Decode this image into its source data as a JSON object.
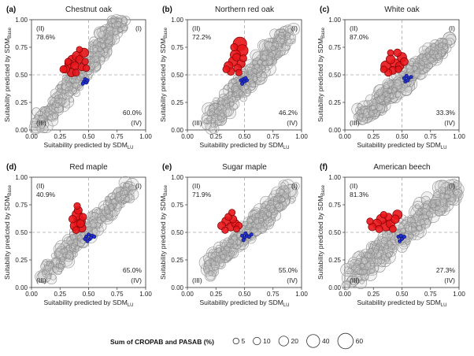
{
  "legend": {
    "title": "Sum of CROPAB and PASAB (%)",
    "entries": [
      {
        "label": "5",
        "value": 5
      },
      {
        "label": "10",
        "value": 10
      },
      {
        "label": "20",
        "value": 20
      },
      {
        "label": "40",
        "value": 40
      },
      {
        "label": "60",
        "value": 60
      }
    ]
  },
  "axes": {
    "x_label_main": "Suitability predicted by SDM",
    "x_label_sub": "LU",
    "y_label_main": "Suitability predicted by SDM",
    "y_label_sub": "Base",
    "ticks": [
      "0.00",
      "0.25",
      "0.50",
      "0.75",
      "1.00"
    ]
  },
  "colors": {
    "gray_fill": "#cccccc",
    "gray_stroke": "#8a8a8a",
    "red_fill": "#e8151b",
    "red_stroke": "#7a0000",
    "blue_fill": "#2233cc",
    "blue_stroke": "#0a0a66",
    "guide_line": "#a8a8a8"
  },
  "chart_data": [
    {
      "type": "scatter",
      "panel": "(a)",
      "title": "Chestnut oak",
      "quadrants": {
        "II": "78.6%",
        "IV": "60.0%"
      },
      "labels": {
        "I": "(I)",
        "II": "(II)",
        "III": "(III)",
        "IV": "(IV)"
      },
      "xlim": [
        0,
        1
      ],
      "ylim": [
        0,
        1
      ],
      "thresholds": {
        "x": 0.5,
        "y": 0.5
      },
      "cloud": {
        "x0": 0.05,
        "y0": 0.02,
        "x1": 0.78,
        "y1": 0.98,
        "spread": 0.065,
        "n": 300,
        "seed": 11
      },
      "red": [
        [
          0.3,
          0.55,
          10
        ],
        [
          0.33,
          0.6,
          14
        ],
        [
          0.36,
          0.63,
          22
        ],
        [
          0.38,
          0.58,
          12
        ],
        [
          0.4,
          0.67,
          18
        ],
        [
          0.42,
          0.64,
          9
        ],
        [
          0.44,
          0.57,
          8
        ],
        [
          0.46,
          0.7,
          15
        ],
        [
          0.35,
          0.52,
          12
        ],
        [
          0.39,
          0.52,
          7
        ],
        [
          0.32,
          0.62,
          6
        ],
        [
          0.47,
          0.62,
          6
        ],
        [
          0.28,
          0.55,
          8
        ],
        [
          0.42,
          0.73,
          5
        ],
        [
          0.48,
          0.56,
          6
        ]
      ],
      "blue": [
        [
          0.46,
          0.44
        ],
        [
          0.47,
          0.46
        ],
        [
          0.48,
          0.43
        ],
        [
          0.49,
          0.45
        ],
        [
          0.45,
          0.42
        ]
      ]
    },
    {
      "type": "scatter",
      "panel": "(b)",
      "title": "Northern red oak",
      "quadrants": {
        "II": "72.2%",
        "IV": "46.2%"
      },
      "labels": {
        "I": "(I)",
        "II": "(II)",
        "III": "(III)",
        "IV": "(IV)"
      },
      "xlim": [
        0,
        1
      ],
      "ylim": [
        0,
        1
      ],
      "thresholds": {
        "x": 0.5,
        "y": 0.5
      },
      "cloud": {
        "x0": 0.18,
        "y0": 0.05,
        "x1": 0.88,
        "y1": 0.88,
        "spread": 0.065,
        "n": 300,
        "seed": 23
      },
      "red": [
        [
          0.46,
          0.78,
          40
        ],
        [
          0.48,
          0.72,
          28
        ],
        [
          0.42,
          0.68,
          20
        ],
        [
          0.4,
          0.62,
          16
        ],
        [
          0.36,
          0.58,
          14
        ],
        [
          0.44,
          0.56,
          10
        ],
        [
          0.38,
          0.53,
          9
        ],
        [
          0.47,
          0.6,
          11
        ],
        [
          0.34,
          0.55,
          7
        ],
        [
          0.41,
          0.75,
          8
        ],
        [
          0.45,
          0.52,
          6
        ],
        [
          0.49,
          0.65,
          7
        ],
        [
          0.43,
          0.66,
          9
        ]
      ],
      "blue": [
        [
          0.47,
          0.45
        ],
        [
          0.49,
          0.46
        ],
        [
          0.5,
          0.44
        ],
        [
          0.52,
          0.45
        ],
        [
          0.48,
          0.42
        ],
        [
          0.51,
          0.47
        ]
      ]
    },
    {
      "type": "scatter",
      "panel": "(c)",
      "title": "White oak",
      "quadrants": {
        "II": "87.0%",
        "IV": "33.3%"
      },
      "labels": {
        "I": "(I)",
        "II": "(II)",
        "III": "(III)",
        "IV": "(IV)"
      },
      "xlim": [
        0,
        1
      ],
      "ylim": [
        0,
        1
      ],
      "thresholds": {
        "x": 0.5,
        "y": 0.5
      },
      "cloud": {
        "x0": 0.13,
        "y0": 0.1,
        "x1": 0.9,
        "y1": 0.8,
        "spread": 0.06,
        "n": 300,
        "seed": 37
      },
      "red": [
        [
          0.36,
          0.58,
          20
        ],
        [
          0.4,
          0.64,
          14
        ],
        [
          0.44,
          0.6,
          18
        ],
        [
          0.48,
          0.58,
          12
        ],
        [
          0.5,
          0.66,
          16
        ],
        [
          0.42,
          0.54,
          10
        ],
        [
          0.38,
          0.52,
          8
        ],
        [
          0.46,
          0.7,
          9
        ],
        [
          0.52,
          0.62,
          10
        ],
        [
          0.34,
          0.55,
          6
        ],
        [
          0.47,
          0.55,
          6
        ],
        [
          0.4,
          0.7,
          5
        ]
      ],
      "blue": [
        [
          0.52,
          0.47
        ],
        [
          0.54,
          0.49
        ],
        [
          0.56,
          0.47
        ],
        [
          0.53,
          0.44
        ],
        [
          0.55,
          0.45
        ],
        [
          0.58,
          0.48
        ]
      ]
    },
    {
      "type": "scatter",
      "panel": "(d)",
      "title": "Red maple",
      "quadrants": {
        "II": "40.9%",
        "IV": "65.0%"
      },
      "labels": {
        "I": "(I)",
        "II": "(II)",
        "III": "(III)",
        "IV": "(IV)"
      },
      "xlim": [
        0,
        1
      ],
      "ylim": [
        0,
        1
      ],
      "thresholds": {
        "x": 0.5,
        "y": 0.5
      },
      "cloud": {
        "x0": 0.1,
        "y0": 0.1,
        "x1": 0.85,
        "y1": 0.9,
        "spread": 0.055,
        "n": 240,
        "seed": 41
      },
      "red": [
        [
          0.4,
          0.66,
          20
        ],
        [
          0.42,
          0.6,
          28
        ],
        [
          0.38,
          0.56,
          16
        ],
        [
          0.44,
          0.54,
          12
        ],
        [
          0.41,
          0.7,
          10
        ],
        [
          0.36,
          0.62,
          9
        ],
        [
          0.45,
          0.64,
          8
        ],
        [
          0.39,
          0.52,
          7
        ],
        [
          0.43,
          0.58,
          10
        ],
        [
          0.4,
          0.74,
          6
        ]
      ],
      "blue": [
        [
          0.48,
          0.46
        ],
        [
          0.5,
          0.48
        ],
        [
          0.51,
          0.44
        ],
        [
          0.53,
          0.47
        ],
        [
          0.49,
          0.42
        ],
        [
          0.52,
          0.45
        ],
        [
          0.55,
          0.46
        ],
        [
          0.47,
          0.44
        ]
      ]
    },
    {
      "type": "scatter",
      "panel": "(e)",
      "title": "Sugar maple",
      "quadrants": {
        "II": "71.9%",
        "IV": "55.0%"
      },
      "labels": {
        "I": "(I)",
        "II": "(II)",
        "III": "(III)",
        "IV": "(IV)"
      },
      "xlim": [
        0,
        1
      ],
      "ylim": [
        0,
        1
      ],
      "thresholds": {
        "x": 0.5,
        "y": 0.5
      },
      "cloud": {
        "x0": 0.15,
        "y0": 0.15,
        "x1": 0.9,
        "y1": 0.88,
        "spread": 0.06,
        "n": 280,
        "seed": 53
      },
      "red": [
        [
          0.3,
          0.56,
          10
        ],
        [
          0.34,
          0.6,
          14
        ],
        [
          0.38,
          0.55,
          12
        ],
        [
          0.42,
          0.58,
          10
        ],
        [
          0.36,
          0.64,
          8
        ],
        [
          0.4,
          0.62,
          9
        ],
        [
          0.45,
          0.56,
          7
        ],
        [
          0.33,
          0.52,
          6
        ],
        [
          0.39,
          0.68,
          6
        ],
        [
          0.43,
          0.53,
          5
        ]
      ],
      "blue": [
        [
          0.48,
          0.47
        ],
        [
          0.5,
          0.45
        ],
        [
          0.52,
          0.47
        ],
        [
          0.51,
          0.49
        ],
        [
          0.54,
          0.46
        ],
        [
          0.49,
          0.43
        ],
        [
          0.56,
          0.48
        ]
      ]
    },
    {
      "type": "scatter",
      "panel": "(f)",
      "title": "American beech",
      "quadrants": {
        "II": "81.3%",
        "IV": "27.3%"
      },
      "labels": {
        "I": "(I)",
        "II": "(II)",
        "III": "(III)",
        "IV": "(IV)"
      },
      "xlim": [
        0,
        1
      ],
      "ylim": [
        0,
        1
      ],
      "thresholds": {
        "x": 0.5,
        "y": 0.5
      },
      "cloud": {
        "x0": 0.05,
        "y0": 0.08,
        "x1": 0.95,
        "y1": 0.9,
        "spread": 0.07,
        "n": 340,
        "seed": 67
      },
      "red": [
        [
          0.28,
          0.58,
          14
        ],
        [
          0.32,
          0.62,
          18
        ],
        [
          0.36,
          0.56,
          22
        ],
        [
          0.4,
          0.58,
          14
        ],
        [
          0.44,
          0.62,
          12
        ],
        [
          0.46,
          0.66,
          16
        ],
        [
          0.24,
          0.55,
          10
        ],
        [
          0.3,
          0.53,
          8
        ],
        [
          0.38,
          0.64,
          9
        ],
        [
          0.42,
          0.53,
          7
        ],
        [
          0.34,
          0.66,
          6
        ],
        [
          0.22,
          0.6,
          6
        ]
      ],
      "blue": [
        [
          0.47,
          0.46
        ],
        [
          0.49,
          0.47
        ],
        [
          0.5,
          0.44
        ],
        [
          0.52,
          0.46
        ],
        [
          0.48,
          0.42
        ]
      ]
    }
  ]
}
